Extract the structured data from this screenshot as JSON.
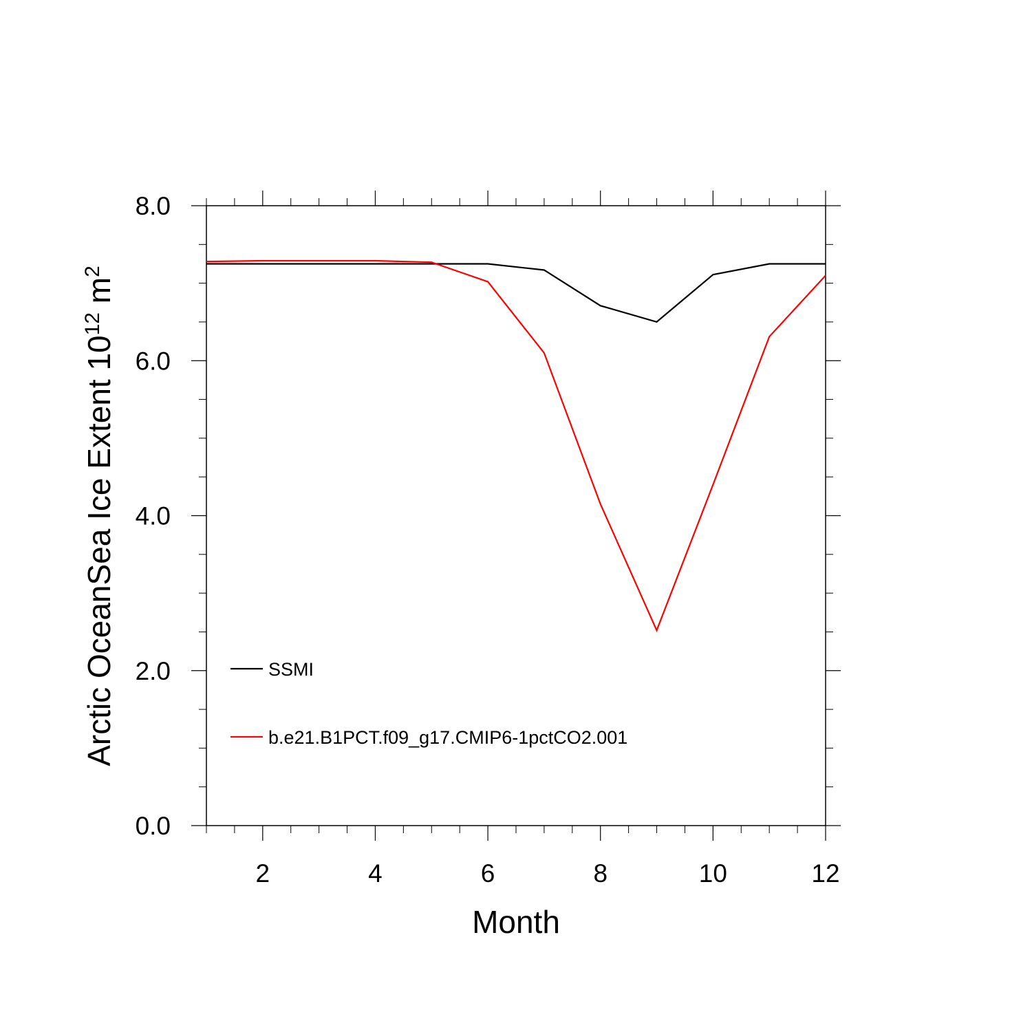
{
  "chart_data": {
    "type": "line",
    "xlabel": "Month",
    "ylabel_text": "Arctic OceanSea Ice Extent 10",
    "ylabel_superscript": "12",
    "ylabel_unit": " m",
    "ylabel_unit_superscript": "2",
    "xlim": [
      1,
      12
    ],
    "ylim": [
      0,
      8
    ],
    "x_ticks": [
      2,
      4,
      6,
      8,
      10,
      12
    ],
    "x_tick_labels": [
      "2",
      "4",
      "6",
      "8",
      "10",
      "12"
    ],
    "y_ticks": [
      0,
      2,
      4,
      6,
      8
    ],
    "y_tick_labels": [
      "0.0",
      "2.0",
      "4.0",
      "6.0",
      "8.0"
    ],
    "grid": false,
    "legend_position": "lower-left",
    "x": [
      1,
      2,
      3,
      4,
      5,
      6,
      7,
      8,
      9,
      10,
      11,
      12
    ],
    "series": [
      {
        "name": "SSMI",
        "color": "#000000",
        "values": [
          7.25,
          7.25,
          7.25,
          7.25,
          7.25,
          7.25,
          7.17,
          6.71,
          6.5,
          7.11,
          7.25,
          7.25
        ]
      },
      {
        "name": "b.e21.B1PCT.f09_g17.CMIP6-1pctCO2.001",
        "color": "#ff0000",
        "values": [
          7.28,
          7.29,
          7.29,
          7.29,
          7.27,
          7.02,
          6.1,
          4.15,
          2.52,
          4.4,
          6.31,
          7.1
        ]
      }
    ]
  }
}
